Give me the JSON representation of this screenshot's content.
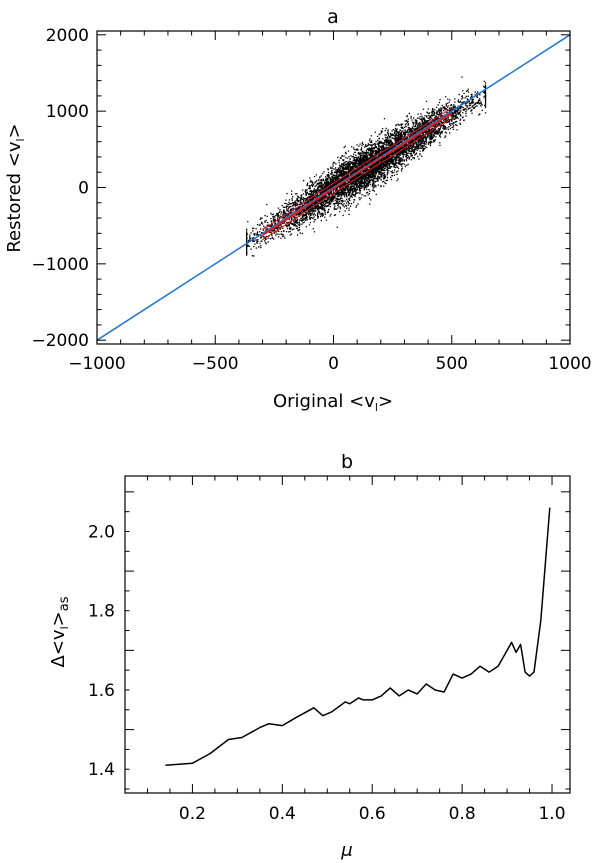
{
  "chart_data": [
    {
      "type": "scatter",
      "title": "a",
      "xlabel_main": "Original <v",
      "xlabel_sub": "l",
      "xlabel_close": ">",
      "ylabel_main": "Restored <v",
      "ylabel_sub": "l",
      "ylabel_close": ">",
      "xlim": [
        -1000,
        1000
      ],
      "ylim": [
        -2050,
        2050
      ],
      "xticks": [
        -1000,
        -500,
        0,
        500,
        1000
      ],
      "yticks": [
        -2000,
        -1000,
        0,
        1000,
        2000
      ],
      "xtick_labels": [
        "−1000",
        "−500",
        "0",
        "500",
        "1000"
      ],
      "ytick_labels": [
        "−2000",
        "−1000",
        "0",
        "1000",
        "2000"
      ],
      "scatter_cloud": {
        "x_range": [
          -370,
          640
        ],
        "slope": 1.93,
        "scatter_sd": 150,
        "color": "#000000"
      },
      "series": [
        {
          "kind": "identity-line",
          "color": "#1f78d1",
          "x": [
            -1000,
            1000
          ],
          "y": [
            -2000,
            2000
          ]
        },
        {
          "kind": "binned-mean",
          "color": "#e41a1c",
          "x": [
            -300,
            -250,
            -200,
            -150,
            -100,
            -50,
            0,
            50,
            100,
            150,
            200,
            250,
            300,
            350,
            400,
            450,
            500
          ],
          "y": [
            -620,
            -520,
            -420,
            -320,
            -210,
            -110,
            -10,
            90,
            190,
            290,
            390,
            480,
            580,
            680,
            780,
            880,
            970
          ]
        },
        {
          "kind": "fit-dashed",
          "color": "#1f78d1",
          "x": [
            -300,
            500
          ],
          "y": [
            -600,
            1000
          ]
        }
      ]
    },
    {
      "type": "line",
      "title": "b",
      "xlabel": "μ",
      "ylabel_main": "Δ<v",
      "ylabel_sub": "l",
      "ylabel_close": ">",
      "ylabel_suffix": "as",
      "xlim": [
        0.05,
        1.04
      ],
      "ylim": [
        1.34,
        2.14
      ],
      "xticks": [
        0.2,
        0.4,
        0.6,
        0.8,
        1.0
      ],
      "yticks": [
        1.4,
        1.6,
        1.8,
        2.0
      ],
      "xtick_labels": [
        "0.2",
        "0.4",
        "0.6",
        "0.8",
        "1.0"
      ],
      "ytick_labels": [
        "1.4",
        "1.6",
        "1.8",
        "2.0"
      ],
      "series": [
        {
          "color": "#000000",
          "x": [
            0.14,
            0.2,
            0.24,
            0.28,
            0.31,
            0.35,
            0.37,
            0.4,
            0.43,
            0.47,
            0.49,
            0.51,
            0.54,
            0.55,
            0.57,
            0.58,
            0.6,
            0.62,
            0.64,
            0.66,
            0.68,
            0.7,
            0.72,
            0.74,
            0.76,
            0.78,
            0.8,
            0.82,
            0.84,
            0.86,
            0.88,
            0.9,
            0.91,
            0.92,
            0.93,
            0.94,
            0.95,
            0.96,
            0.975,
            0.995
          ],
          "y": [
            1.41,
            1.415,
            1.44,
            1.475,
            1.48,
            1.505,
            1.515,
            1.51,
            1.53,
            1.555,
            1.535,
            1.545,
            1.57,
            1.565,
            1.58,
            1.575,
            1.575,
            1.585,
            1.605,
            1.585,
            1.6,
            1.59,
            1.615,
            1.6,
            1.595,
            1.64,
            1.63,
            1.64,
            1.66,
            1.645,
            1.66,
            1.7,
            1.72,
            1.695,
            1.715,
            1.645,
            1.635,
            1.645,
            1.775,
            2.06
          ]
        }
      ]
    }
  ]
}
